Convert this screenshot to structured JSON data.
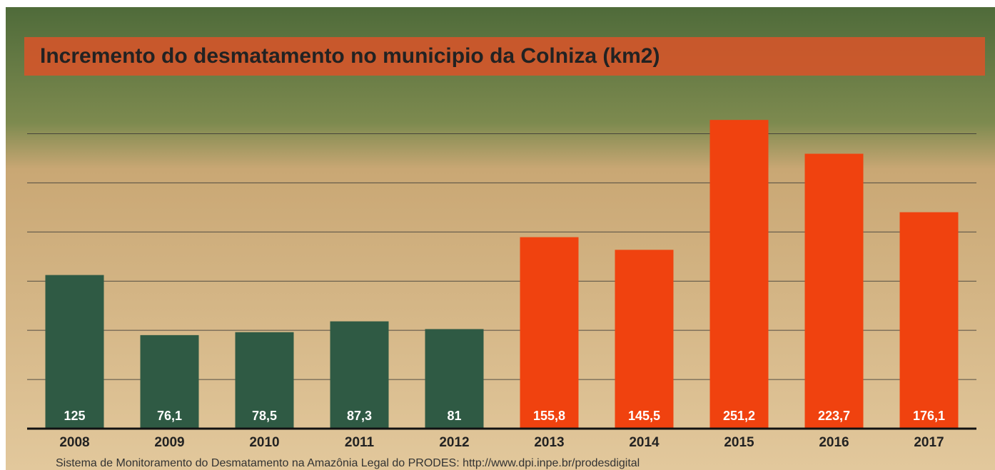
{
  "chart_data": {
    "type": "bar",
    "title": "Incremento do desmatamento no municipio da Colniza (km2)",
    "source": "Sistema de Monitoramento do Desmatamento na Amazônia Legal do  PRODES: http://www.dpi.inpe.br/prodesdigital",
    "categories": [
      "2008",
      "2009",
      "2010",
      "2011",
      "2012",
      "2013",
      "2014",
      "2015",
      "2016",
      "2017"
    ],
    "values": [
      125,
      76.1,
      78.5,
      87.3,
      81,
      155.8,
      145.5,
      251.2,
      223.7,
      176.1
    ],
    "value_labels": [
      "125",
      "76,1",
      "78,5",
      "87,3",
      "81",
      "155,8",
      "145,5",
      "251,2",
      "223,7",
      "176,1"
    ],
    "colors": [
      "#2f5a44",
      "#2f5a44",
      "#2f5a44",
      "#2f5a44",
      "#2f5a44",
      "#f0420f",
      "#f0420f",
      "#f0420f",
      "#f0420f",
      "#f0420f"
    ],
    "ylim": [
      0,
      260
    ],
    "yticks": [
      0,
      40,
      80,
      120,
      160,
      200,
      240
    ],
    "grid": true
  }
}
